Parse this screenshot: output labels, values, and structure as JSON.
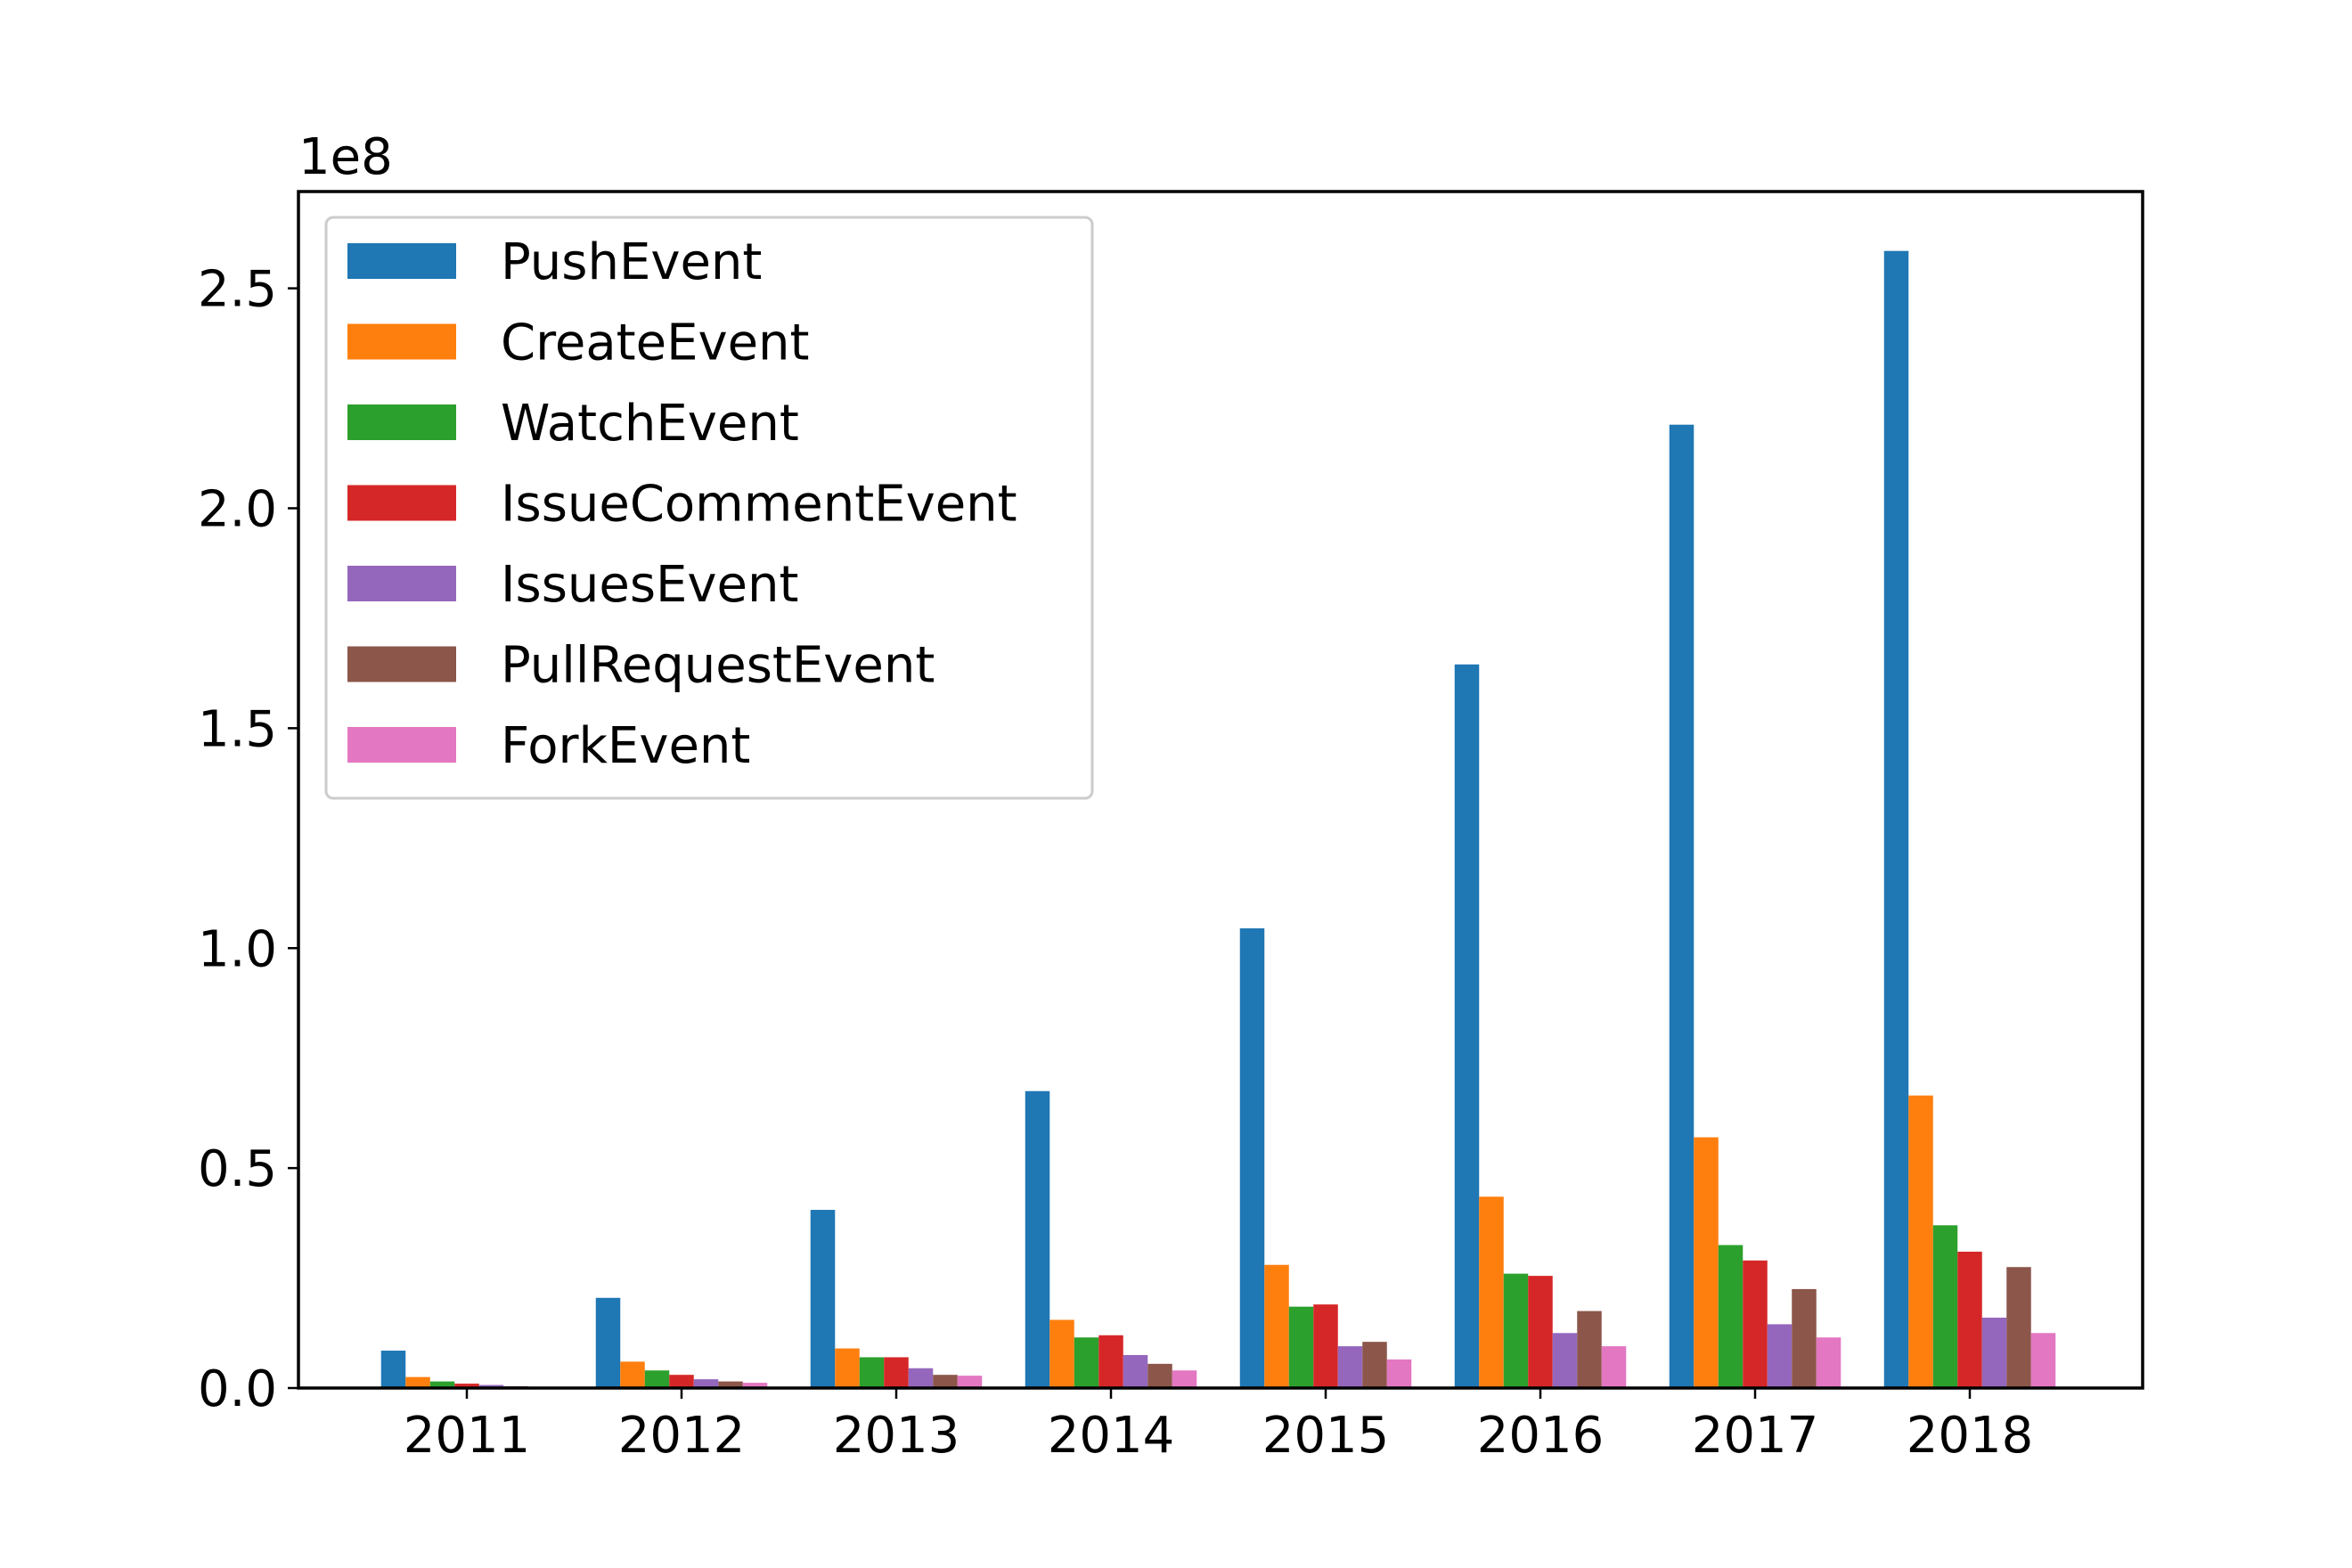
{
  "chart_data": {
    "type": "bar",
    "categories": [
      "2011",
      "2012",
      "2013",
      "2014",
      "2015",
      "2016",
      "2017",
      "2018"
    ],
    "series": [
      {
        "name": "PushEvent",
        "color": "#1f77b4",
        "values": [
          8.5,
          20.5,
          40.5,
          67.5,
          104.5,
          164.5,
          219.0,
          258.5
        ]
      },
      {
        "name": "CreateEvent",
        "color": "#ff7f0e",
        "values": [
          2.5,
          6.0,
          9.0,
          15.5,
          28.0,
          43.5,
          57.0,
          66.5
        ]
      },
      {
        "name": "WatchEvent",
        "color": "#2ca02c",
        "values": [
          1.5,
          4.0,
          7.0,
          11.5,
          18.5,
          26.0,
          32.5,
          37.0
        ]
      },
      {
        "name": "IssueCommentEvent",
        "color": "#d62728",
        "values": [
          1.0,
          3.0,
          7.0,
          12.0,
          19.0,
          25.5,
          29.0,
          31.0
        ]
      },
      {
        "name": "IssuesEvent",
        "color": "#9467bd",
        "values": [
          0.7,
          2.0,
          4.5,
          7.5,
          9.5,
          12.5,
          14.5,
          16.0
        ]
      },
      {
        "name": "PullRequestEvent",
        "color": "#8c564b",
        "values": [
          0.4,
          1.5,
          3.0,
          5.5,
          10.5,
          17.5,
          22.5,
          27.5
        ]
      },
      {
        "name": "ForkEvent",
        "color": "#e377c2",
        "values": [
          0.3,
          1.2,
          2.8,
          4.0,
          6.5,
          9.5,
          11.5,
          12.5
        ]
      }
    ],
    "yticks": [
      "0.0",
      "0.5",
      "1.0",
      "1.5",
      "2.0",
      "2.5"
    ],
    "ytick_values": [
      0,
      50,
      100,
      150,
      200,
      250
    ],
    "y_offset_label": "1e8",
    "ylim": [
      0,
      272
    ],
    "units_note": "values in millions (×1e6); axis shows ×1e8",
    "legend_position": "top-left",
    "grid": false
  }
}
